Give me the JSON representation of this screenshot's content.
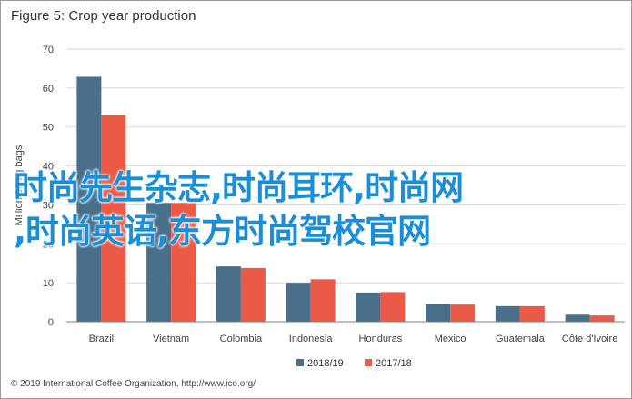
{
  "figure_title": "Figure 5: Crop year production",
  "credit": "© 2019 International Coffee Organization, http://www.ico.org/",
  "overlay_lines": [
    "时尚先生杂志,时尚耳环,时尚网",
    ",时尚英语,东方时尚驾校官网"
  ],
  "colors": {
    "series_1": "#4a6f8a",
    "series_2": "#ea5a47",
    "grid": "#d9d9d9",
    "axis": "#7f7f7f"
  },
  "chart_data": {
    "type": "bar",
    "title": "Figure 5: Crop year production",
    "ylabel": "Million 60-kg bags",
    "xlabel": "",
    "ylim": [
      0,
      70
    ],
    "yticks": [
      0,
      10,
      20,
      30,
      40,
      50,
      60,
      70
    ],
    "grid": true,
    "legend_position": "bottom",
    "categories": [
      "Brazil",
      "Vietnam",
      "Colombia",
      "Indonesia",
      "Honduras",
      "Mexico",
      "Guatemala",
      "Côte d'Ivoire"
    ],
    "series": [
      {
        "name": "2018/19",
        "values": [
          62.9,
          30.5,
          14.2,
          10.0,
          7.5,
          4.5,
          4.0,
          1.8
        ]
      },
      {
        "name": "2017/18",
        "values": [
          53.0,
          30.5,
          13.8,
          10.9,
          7.6,
          4.4,
          4.0,
          1.6
        ]
      }
    ]
  }
}
